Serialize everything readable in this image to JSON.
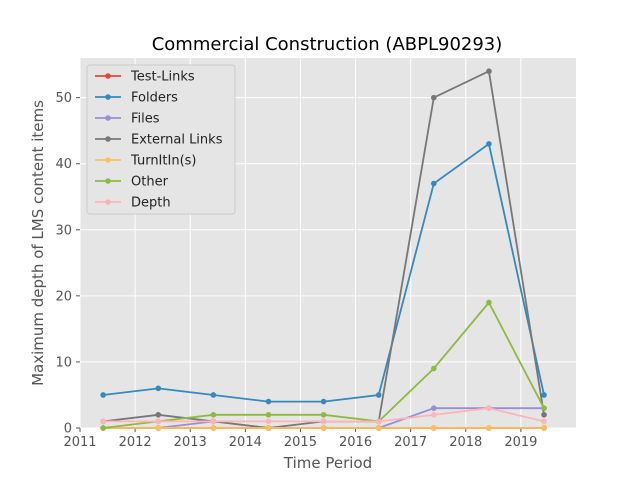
{
  "chart_data": {
    "type": "line",
    "title": "Commercial Construction (ABPL90293)",
    "xlabel": "Time Period",
    "ylabel": "Maximum depth of LMS content items",
    "xlim": [
      2011,
      2020
    ],
    "ylim": [
      0,
      56
    ],
    "xticks": [
      2011,
      2012,
      2013,
      2014,
      2015,
      2016,
      2017,
      2018,
      2019
    ],
    "yticks": [
      0,
      10,
      20,
      30,
      40,
      50
    ],
    "grid": true,
    "legend_position": "top-left",
    "x": [
      2011.42,
      2012.42,
      2013.42,
      2014.42,
      2015.42,
      2016.42,
      2017.42,
      2018.42,
      2019.42
    ],
    "series": [
      {
        "name": "Test-Links",
        "color": "#e24a33",
        "values": [
          0,
          0,
          0,
          0,
          0,
          0,
          0,
          0,
          0
        ]
      },
      {
        "name": "Folders",
        "color": "#348abd",
        "values": [
          5,
          6,
          5,
          4,
          4,
          5,
          37,
          43,
          5
        ]
      },
      {
        "name": "Files",
        "color": "#988ed5",
        "values": [
          0,
          0,
          1,
          0,
          0,
          0,
          3,
          3,
          3
        ]
      },
      {
        "name": "External Links",
        "color": "#777777",
        "values": [
          1,
          2,
          1,
          0,
          1,
          1,
          50,
          54,
          2
        ]
      },
      {
        "name": "TurnItIn(s)",
        "color": "#fbc15e",
        "values": [
          0,
          0,
          0,
          0,
          0,
          0,
          0,
          0,
          0
        ]
      },
      {
        "name": "Other",
        "color": "#8eba42",
        "values": [
          0,
          1,
          2,
          2,
          2,
          1,
          9,
          19,
          3
        ]
      },
      {
        "name": "Depth",
        "color": "#ffb5b8",
        "values": [
          1,
          1,
          1,
          1,
          1,
          1,
          2,
          3,
          1
        ]
      }
    ]
  }
}
